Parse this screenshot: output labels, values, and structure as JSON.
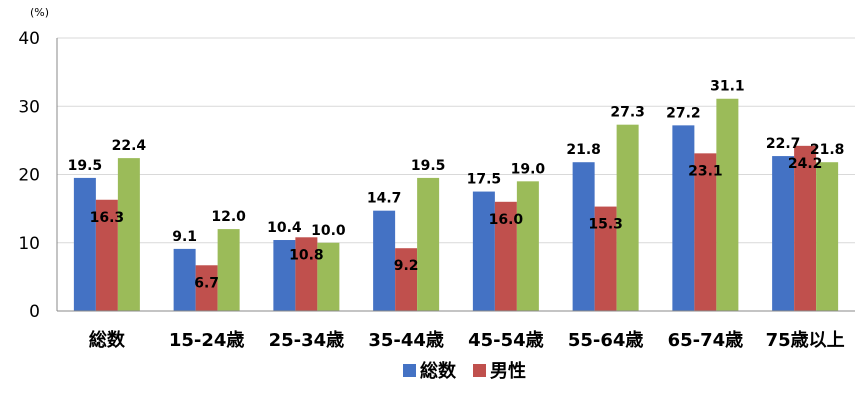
{
  "chart_data": {
    "type": "bar",
    "unit": "(%)",
    "categories": [
      "総数",
      "15-24歳",
      "25-34歳",
      "35-44歳",
      "45-54歳",
      "55-64歳",
      "65-74歳",
      "75歳以上"
    ],
    "series": [
      {
        "name": "総数",
        "color": "#4472C4",
        "values": [
          19.5,
          9.1,
          10.4,
          14.7,
          17.5,
          21.8,
          27.2,
          22.7
        ]
      },
      {
        "name": "男性",
        "color": "#C0504D",
        "values": [
          16.3,
          6.7,
          10.8,
          9.2,
          16.0,
          15.3,
          23.1,
          24.2
        ]
      },
      {
        "name": "",
        "color": "#9BBB59",
        "values": [
          22.4,
          12.0,
          10.0,
          19.5,
          19.0,
          27.3,
          31.1,
          21.8
        ]
      }
    ],
    "ylim": [
      0,
      40
    ],
    "yticks": [
      0,
      10,
      20,
      30,
      40
    ],
    "grid": true,
    "legend": "bottom"
  }
}
